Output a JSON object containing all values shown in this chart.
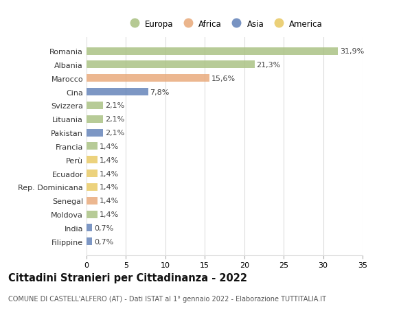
{
  "title": "Cittadini Stranieri per Cittadinanza - 2022",
  "subtitle": "COMUNE DI CASTELL'ALFERO (AT) - Dati ISTAT al 1° gennaio 2022 - Elaborazione TUTTITALIA.IT",
  "countries": [
    "Romania",
    "Albania",
    "Marocco",
    "Cina",
    "Svizzera",
    "Lituania",
    "Pakistan",
    "Francia",
    "Perù",
    "Ecuador",
    "Rep. Dominicana",
    "Senegal",
    "Moldova",
    "India",
    "Filippine"
  ],
  "values": [
    31.9,
    21.3,
    15.6,
    7.8,
    2.1,
    2.1,
    2.1,
    1.4,
    1.4,
    1.4,
    1.4,
    1.4,
    1.4,
    0.7,
    0.7
  ],
  "continents": [
    "Europa",
    "Europa",
    "Africa",
    "Asia",
    "Europa",
    "Europa",
    "Asia",
    "Europa",
    "America",
    "America",
    "America",
    "Africa",
    "Europa",
    "Asia",
    "Asia"
  ],
  "labels": [
    "31,9%",
    "21,3%",
    "15,6%",
    "7,8%",
    "2,1%",
    "2,1%",
    "2,1%",
    "1,4%",
    "1,4%",
    "1,4%",
    "1,4%",
    "1,4%",
    "1,4%",
    "0,7%",
    "0,7%"
  ],
  "continent_colors": {
    "Europa": "#a8c080",
    "Africa": "#e8a878",
    "Asia": "#6080b8",
    "America": "#e8c860"
  },
  "legend_order": [
    "Europa",
    "Africa",
    "Asia",
    "America"
  ],
  "xlim": [
    0,
    35
  ],
  "xticks": [
    0,
    5,
    10,
    15,
    20,
    25,
    30,
    35
  ],
  "background_color": "#ffffff",
  "grid_color": "#dddddd",
  "bar_height": 0.55,
  "label_fontsize": 8,
  "tick_fontsize": 8,
  "title_fontsize": 10.5,
  "subtitle_fontsize": 7,
  "legend_fontsize": 8.5
}
